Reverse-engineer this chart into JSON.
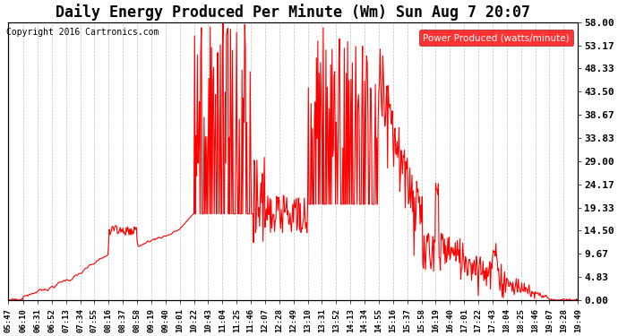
{
  "title": "Daily Energy Produced Per Minute (Wm) Sun Aug 7 20:07",
  "copyright": "Copyright 2016 Cartronics.com",
  "legend_label": "Power Produced (watts/minute)",
  "ymin": 0.0,
  "ymax": 58.0,
  "yticks": [
    0.0,
    4.83,
    9.67,
    14.5,
    19.33,
    24.17,
    29.0,
    33.83,
    38.67,
    43.5,
    48.33,
    53.17,
    58.0
  ],
  "line_color": "red",
  "bg_color": "#ffffff",
  "title_fontsize": 12,
  "xtick_labels": [
    "05:47",
    "06:10",
    "06:31",
    "06:52",
    "07:13",
    "07:34",
    "07:55",
    "08:16",
    "08:37",
    "08:58",
    "09:19",
    "09:40",
    "10:01",
    "10:22",
    "10:43",
    "11:04",
    "11:25",
    "11:46",
    "12:07",
    "12:28",
    "12:49",
    "13:10",
    "13:31",
    "13:52",
    "14:13",
    "14:34",
    "14:55",
    "15:16",
    "15:37",
    "15:58",
    "16:19",
    "16:40",
    "17:01",
    "17:22",
    "17:43",
    "18:04",
    "18:25",
    "18:46",
    "19:07",
    "19:28",
    "19:49"
  ]
}
